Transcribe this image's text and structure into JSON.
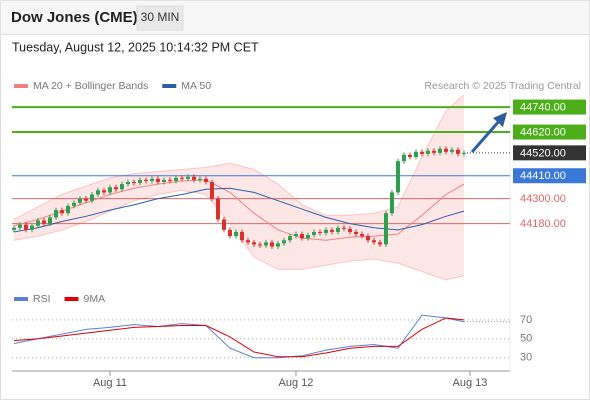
{
  "chart_data": {
    "type": "candlestick",
    "title": "Dow Jones (CME)",
    "timeframe": "30 MIN",
    "subtitle": "Tuesday, August 12, 2025 10:14:32 PM CET",
    "credit": "Research © 2025 Trading Central",
    "xlim": [
      -0.33,
      82.67
    ],
    "xticks": [
      {
        "value": 16,
        "label": "Aug 11"
      },
      {
        "value": 47,
        "label": "Aug 12"
      },
      {
        "value": 76,
        "label": "Aug 13"
      }
    ],
    "ylim": [
      43885,
      44822
    ],
    "up_color": "#2f9e4f",
    "down_color": "#d9302c",
    "candles": [
      [
        44150,
        44172,
        44138,
        44160
      ],
      [
        44160,
        44187,
        44148,
        44175
      ],
      [
        44175,
        44187,
        44138,
        44150
      ],
      [
        44150,
        44182,
        44138,
        44170
      ],
      [
        44170,
        44207,
        44158,
        44195
      ],
      [
        44195,
        44207,
        44168,
        44180
      ],
      [
        44180,
        44222,
        44168,
        44210
      ],
      [
        44210,
        44257,
        44198,
        44245
      ],
      [
        44245,
        44257,
        44218,
        44230
      ],
      [
        44230,
        44277,
        44218,
        44265
      ],
      [
        44265,
        44292,
        44253,
        44280
      ],
      [
        44280,
        44312,
        44268,
        44300
      ],
      [
        44300,
        44312,
        44278,
        44290
      ],
      [
        44290,
        44332,
        44278,
        44320
      ],
      [
        44320,
        44352,
        44308,
        44340
      ],
      [
        44340,
        44352,
        44318,
        44330
      ],
      [
        44330,
        44367,
        44318,
        44355
      ],
      [
        44355,
        44367,
        44333,
        44345
      ],
      [
        44345,
        44382,
        44333,
        44370
      ],
      [
        44370,
        44392,
        44358,
        44380
      ],
      [
        44380,
        44392,
        44363,
        44375
      ],
      [
        44375,
        44402,
        44363,
        44390
      ],
      [
        44390,
        44402,
        44373,
        44385
      ],
      [
        44385,
        44407,
        44373,
        44395
      ],
      [
        44395,
        44407,
        44368,
        44380
      ],
      [
        44380,
        44402,
        44368,
        44390
      ],
      [
        44390,
        44402,
        44373,
        44385
      ],
      [
        44385,
        44412,
        44373,
        44400
      ],
      [
        44400,
        44412,
        44383,
        44395
      ],
      [
        44395,
        44417,
        44383,
        44405
      ],
      [
        44405,
        44417,
        44378,
        44390
      ],
      [
        44390,
        44407,
        44378,
        44395
      ],
      [
        44395,
        44407,
        44368,
        44380
      ],
      [
        44380,
        44392,
        44288,
        44300
      ],
      [
        44300,
        44312,
        44188,
        44200
      ],
      [
        44200,
        44212,
        44138,
        44150
      ],
      [
        44150,
        44162,
        44108,
        44120
      ],
      [
        44120,
        44152,
        44108,
        44140
      ],
      [
        44140,
        44152,
        44088,
        44100
      ],
      [
        44100,
        44112,
        44078,
        44090
      ],
      [
        44090,
        44102,
        44068,
        44080
      ],
      [
        44080,
        44092,
        44063,
        44075
      ],
      [
        44075,
        44102,
        44063,
        44090
      ],
      [
        44090,
        44102,
        44058,
        44070
      ],
      [
        44070,
        44097,
        44058,
        44085
      ],
      [
        44085,
        44112,
        44073,
        44100
      ],
      [
        44100,
        44132,
        44088,
        44120
      ],
      [
        44120,
        44142,
        44108,
        44130
      ],
      [
        44130,
        44142,
        44098,
        44110
      ],
      [
        44110,
        44137,
        44098,
        44125
      ],
      [
        44125,
        44152,
        44113,
        44140
      ],
      [
        44140,
        44152,
        44123,
        44135
      ],
      [
        44135,
        44162,
        44123,
        44150
      ],
      [
        44150,
        44162,
        44128,
        44140
      ],
      [
        44140,
        44172,
        44128,
        44160
      ],
      [
        44160,
        44172,
        44143,
        44155
      ],
      [
        44155,
        44167,
        44128,
        44140
      ],
      [
        44140,
        44152,
        44118,
        44130
      ],
      [
        44130,
        44142,
        44108,
        44120
      ],
      [
        44120,
        44132,
        44088,
        44100
      ],
      [
        44100,
        44112,
        44078,
        44090
      ],
      [
        44090,
        44102,
        44068,
        44080
      ],
      [
        44080,
        44242,
        44068,
        44230
      ],
      [
        44230,
        44342,
        44218,
        44330
      ],
      [
        44330,
        44492,
        44318,
        44480
      ],
      [
        44480,
        44522,
        44468,
        44510
      ],
      [
        44510,
        44522,
        44488,
        44500
      ],
      [
        44500,
        44537,
        44488,
        44525
      ],
      [
        44525,
        44537,
        44503,
        44515
      ],
      [
        44515,
        44542,
        44503,
        44530
      ],
      [
        44530,
        44542,
        44508,
        44520
      ],
      [
        44520,
        44552,
        44508,
        44540
      ],
      [
        44540,
        44552,
        44513,
        44525
      ],
      [
        44525,
        44547,
        44513,
        44535
      ],
      [
        44535,
        44547,
        44503,
        44515
      ],
      [
        44515,
        44532,
        44503,
        44520
      ]
    ],
    "overlay_x": [
      0,
      4,
      8,
      12,
      16,
      20,
      24,
      28,
      32,
      36,
      40,
      44,
      48,
      52,
      56,
      60,
      64,
      68,
      72,
      75
    ],
    "overlays": [
      {
        "name": "MA 20 + Bollinger Bands",
        "color": "#f08080",
        "values": [
          44170,
          44200,
          44240,
          44280,
          44320,
          44350,
          44370,
          44385,
          44390,
          44330,
          44230,
          44150,
          44110,
          44100,
          44115,
          44120,
          44130,
          44220,
          44320,
          44370
        ],
        "upper": [
          44200,
          44260,
          44320,
          44360,
          44400,
          44420,
          44430,
          44440,
          44450,
          44470,
          44440,
          44370,
          44270,
          44220,
          44220,
          44230,
          44260,
          44500,
          44720,
          44800
        ],
        "lower": [
          44100,
          44120,
          44150,
          44190,
          44240,
          44290,
          44320,
          44340,
          44320,
          44180,
          44020,
          43960,
          43960,
          43980,
          44000,
          44010,
          43990,
          43950,
          43910,
          43930
        ]
      },
      {
        "name": "MA 50",
        "color": "#2b5ea7",
        "values": [
          44140,
          44160,
          44190,
          44215,
          44245,
          44270,
          44300,
          44320,
          44345,
          44350,
          44330,
          44290,
          44250,
          44210,
          44180,
          44160,
          44150,
          44175,
          44215,
          44240
        ]
      }
    ],
    "levels": [
      {
        "value": 44740,
        "label": "44740.00",
        "color": "#4caf1a",
        "style": "solid",
        "tag": true
      },
      {
        "value": 44620,
        "label": "44620.00",
        "color": "#4caf1a",
        "style": "solid",
        "tag": true
      },
      {
        "value": 44520,
        "label": "44520.00",
        "color": "#333333",
        "style": "dotted",
        "tag": true
      },
      {
        "value": 44410,
        "label": "44410.00",
        "color": "#3a78d8",
        "style": "solid",
        "tag": true
      },
      {
        "value": 44300,
        "label": "44300.00",
        "color": "#e06666",
        "style": "solid",
        "tag": false
      },
      {
        "value": 44180,
        "label": "44180.00",
        "color": "#e06666",
        "style": "solid",
        "tag": false
      }
    ],
    "rsi": {
      "ylim": [
        17,
        91
      ],
      "yticks": [
        30,
        50,
        70
      ],
      "series": [
        {
          "name": "RSI",
          "color": "#5b7fd6",
          "values": [
            45,
            50,
            55,
            60,
            62,
            65,
            63,
            66,
            64,
            40,
            30,
            30,
            32,
            38,
            42,
            44,
            40,
            75,
            72,
            68
          ]
        },
        {
          "name": "9MA",
          "color": "#e00000",
          "values": [
            48,
            50,
            53,
            56,
            59,
            62,
            63,
            64,
            64,
            52,
            36,
            31,
            31,
            35,
            40,
            42,
            42,
            60,
            72,
            70
          ]
        }
      ]
    }
  }
}
